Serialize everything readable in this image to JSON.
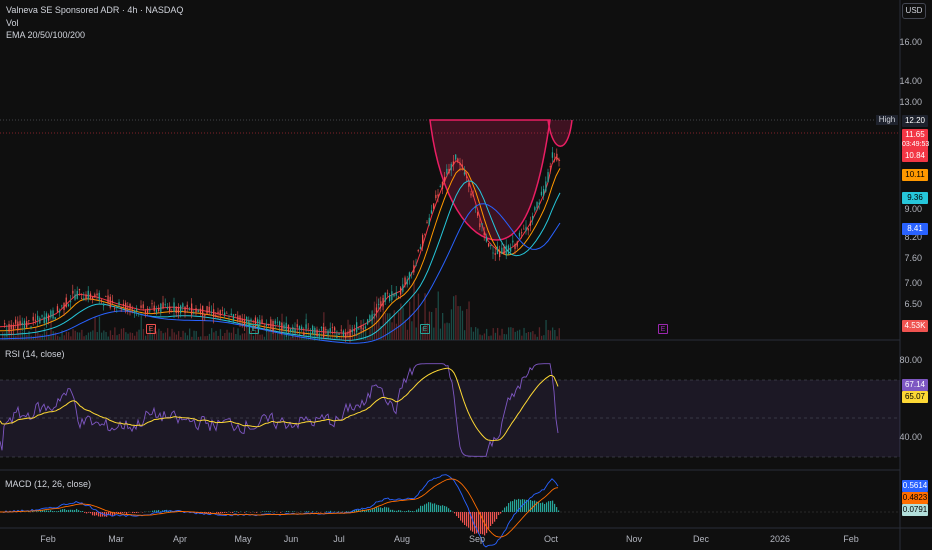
{
  "legend": {
    "symbol_line": "Valneva SE Sponsored ADR · 4h · NASDAQ",
    "vol": "Vol",
    "ema": "EMA 20/50/100/200"
  },
  "currency_button": "USD",
  "price_axis_ticks": [
    "16.00",
    "14.00",
    "13.00",
    "9.00",
    "8.20",
    "7.60",
    "7.00",
    "6.50"
  ],
  "high_label": "High",
  "price_badges": {
    "high": "12.20",
    "last": "11.65",
    "countdown": "03:49:53",
    "ema20": "10.84",
    "ema50": "10.11",
    "ema100": "9.36",
    "ema200": "8.41",
    "volume": "4.53K"
  },
  "rsi": {
    "legend": "RSI (14, close)",
    "ticks": [
      "80.00",
      "40.00"
    ],
    "rsi_value": "67.14",
    "ma_value": "65.07"
  },
  "macd": {
    "legend": "MACD (12, 26, close)",
    "macd_value": "0.5614",
    "signal_value": "0.4823",
    "hist_value": "0.0791"
  },
  "time_axis": [
    "Feb",
    "Mar",
    "Apr",
    "May",
    "Jun",
    "Jul",
    "Aug",
    "Sep",
    "Oct",
    "Nov",
    "Dec",
    "2026",
    "Feb"
  ],
  "earnings_markers": [
    "E",
    "E",
    "E",
    "E"
  ],
  "colors": {
    "up": "#26a69a",
    "down": "#ef5350",
    "ema20": "#f23645",
    "ema50": "#ff9800",
    "ema100": "#26c6da",
    "ema200": "#2962ff",
    "rsi": "#7e57c2",
    "rsi_ma": "#fdd835",
    "macd": "#2962ff",
    "signal": "#ff6d00",
    "cup": "#e91e63"
  }
}
